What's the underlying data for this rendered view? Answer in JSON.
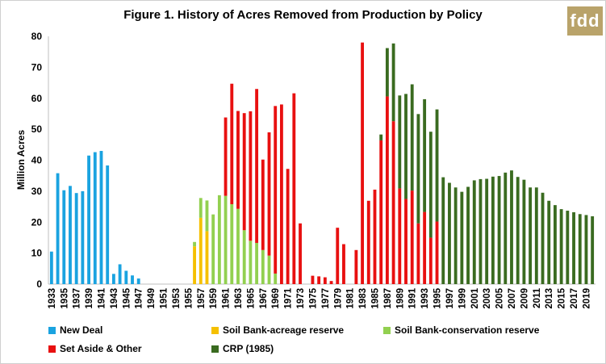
{
  "figure": {
    "title": "Figure 1. History of Acres Removed from Production by Policy",
    "logo_text": "fdd"
  },
  "chart_data": {
    "type": "bar",
    "stacked": true,
    "title": "Figure 1. History of Acres Removed from Production by Policy",
    "xlabel": "",
    "ylabel": "Million Acres",
    "ylim": [
      0,
      80
    ],
    "yticks": [
      0,
      10,
      20,
      30,
      40,
      50,
      60,
      70,
      80
    ],
    "grid": false,
    "legend_position": "bottom",
    "categories": [
      1933,
      1934,
      1935,
      1936,
      1937,
      1938,
      1939,
      1940,
      1941,
      1942,
      1943,
      1944,
      1945,
      1946,
      1947,
      1948,
      1949,
      1950,
      1951,
      1952,
      1953,
      1954,
      1955,
      1956,
      1957,
      1958,
      1959,
      1960,
      1961,
      1962,
      1963,
      1964,
      1965,
      1966,
      1967,
      1968,
      1969,
      1970,
      1971,
      1972,
      1973,
      1974,
      1975,
      1976,
      1977,
      1978,
      1979,
      1980,
      1981,
      1982,
      1983,
      1984,
      1985,
      1986,
      1987,
      1988,
      1989,
      1990,
      1991,
      1992,
      1993,
      1994,
      1995,
      1996,
      1997,
      1998,
      1999,
      2000,
      2001,
      2002,
      2003,
      2004,
      2005,
      2006,
      2007,
      2008,
      2009,
      2010,
      2011,
      2012,
      2013,
      2014,
      2015,
      2016,
      2017,
      2018,
      2019,
      2020
    ],
    "x_tick_labels": [
      "1933",
      "1935",
      "1937",
      "1939",
      "1941",
      "1943",
      "1945",
      "1947",
      "1949",
      "1951",
      "1953",
      "1955",
      "1957",
      "1959",
      "1961",
      "1963",
      "1965",
      "1967",
      "1969",
      "1971",
      "1973",
      "1975",
      "1977",
      "1979",
      "1981",
      "1983",
      "1985",
      "1987",
      "1989",
      "1991",
      "1993",
      "1995",
      "1997",
      "1999",
      "2001",
      "2003",
      "2005",
      "2007",
      "2009",
      "2011",
      "2013",
      "2015",
      "2017",
      "2019"
    ],
    "series": [
      {
        "name": "New Deal",
        "color": "#1aa3e0",
        "values": [
          10.5,
          35.8,
          30.3,
          31.7,
          29.4,
          30.0,
          41.5,
          42.6,
          43.0,
          38.3,
          3.3,
          6.4,
          4.3,
          2.8,
          1.8,
          0,
          0,
          0,
          0,
          0,
          0,
          0,
          0,
          0,
          0,
          0,
          0,
          0,
          0,
          0,
          0,
          0,
          0,
          0,
          0,
          0,
          0,
          0,
          0,
          0,
          0,
          0,
          0,
          0,
          0,
          0,
          0,
          0,
          0,
          0,
          0,
          0,
          0,
          0,
          0,
          0,
          0,
          0,
          0,
          0,
          0,
          0,
          0,
          0,
          0,
          0,
          0,
          0,
          0,
          0,
          0,
          0,
          0,
          0,
          0,
          0,
          0,
          0,
          0,
          0,
          0,
          0,
          0,
          0,
          0,
          0,
          0,
          0
        ]
      },
      {
        "name": "Soil Bank-acreage reserve",
        "color": "#f5c000",
        "values": [
          0,
          0,
          0,
          0,
          0,
          0,
          0,
          0,
          0,
          0,
          0,
          0,
          0,
          0,
          0,
          0,
          0,
          0,
          0,
          0,
          0,
          0,
          0,
          12.2,
          21.4,
          17.1,
          0,
          0,
          0,
          0,
          0,
          0,
          0,
          0,
          0,
          0,
          0,
          0,
          0,
          0,
          0,
          0,
          0,
          0,
          0,
          0,
          0,
          0,
          0,
          0,
          0,
          0,
          0,
          0,
          0,
          0,
          0,
          0,
          0,
          0,
          0,
          0,
          0,
          0,
          0,
          0,
          0,
          0,
          0,
          0,
          0,
          0,
          0,
          0,
          0,
          0,
          0,
          0,
          0,
          0,
          0,
          0,
          0,
          0,
          0,
          0,
          0,
          0
        ]
      },
      {
        "name": "Soil Bank-conservation reserve",
        "color": "#92d050",
        "values": [
          0,
          0,
          0,
          0,
          0,
          0,
          0,
          0,
          0,
          0,
          0,
          0,
          0,
          0,
          0,
          0,
          0,
          0,
          0,
          0,
          0,
          0,
          0,
          1.4,
          6.4,
          9.9,
          22.5,
          28.7,
          28.5,
          25.8,
          24.3,
          17.4,
          14.0,
          13.3,
          11.0,
          9.2,
          3.4,
          0,
          0,
          0,
          0,
          0,
          0,
          0,
          0,
          0,
          0,
          0,
          0,
          0,
          0,
          0,
          0,
          0,
          0,
          0,
          0,
          0,
          0,
          0,
          0,
          0,
          0,
          0,
          0,
          0,
          0,
          0,
          0,
          0,
          0,
          0,
          0,
          0,
          0,
          0,
          0,
          0,
          0,
          0,
          0,
          0,
          0,
          0,
          0,
          0,
          0,
          0
        ]
      },
      {
        "name": "Set Aside & Other",
        "color": "#e81010",
        "values": [
          0,
          0,
          0,
          0,
          0,
          0,
          0,
          0,
          0,
          0,
          0,
          0,
          0,
          0,
          0,
          0,
          0,
          0,
          0,
          0,
          0,
          0,
          0,
          0,
          0,
          0,
          0,
          0,
          25.3,
          38.9,
          31.6,
          37.8,
          41.8,
          49.7,
          29.2,
          39.8,
          54.1,
          58.0,
          37.2,
          61.6,
          19.6,
          0,
          2.7,
          2.5,
          2.2,
          1.0,
          18.2,
          12.9,
          0,
          11.0,
          78.0,
          26.9,
          30.5,
          46.4,
          60.6,
          52.6,
          30.9,
          27.5,
          30.2,
          19.6,
          23.3,
          15.0,
          20.2,
          0,
          0,
          0,
          0,
          0,
          0,
          0,
          0,
          0,
          0,
          0,
          0,
          0,
          0,
          0,
          0,
          0,
          0,
          0,
          0,
          0,
          0,
          0,
          0,
          0
        ]
      },
      {
        "name": "CRP (1985)",
        "color": "#3a6b20",
        "values": [
          0,
          0,
          0,
          0,
          0,
          0,
          0,
          0,
          0,
          0,
          0,
          0,
          0,
          0,
          0,
          0,
          0,
          0,
          0,
          0,
          0,
          0,
          0,
          0,
          0,
          0,
          0,
          0,
          0,
          0,
          0,
          0,
          0,
          0,
          0,
          0,
          0,
          0,
          0,
          0,
          0,
          0,
          0,
          0,
          0,
          0,
          0,
          0,
          0,
          0,
          0,
          0,
          0,
          1.9,
          15.6,
          25.1,
          30.0,
          33.9,
          34.3,
          35.3,
          36.4,
          34.2,
          36.2,
          34.5,
          32.7,
          31.2,
          29.8,
          31.4,
          33.5,
          33.9,
          34.0,
          34.7,
          34.9,
          36.0,
          36.7,
          34.6,
          33.7,
          31.2,
          31.2,
          29.5,
          26.9,
          25.5,
          24.2,
          23.7,
          23.2,
          22.6,
          22.3,
          21.9
        ]
      }
    ]
  }
}
